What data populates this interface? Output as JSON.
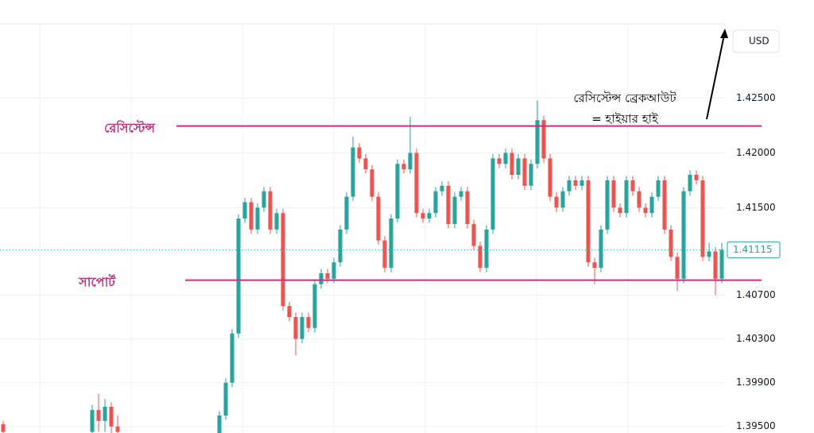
{
  "chart_data": {
    "type": "candlestick",
    "up_color": "#26a69a",
    "down_color": "#ef5350",
    "ylim": [
      1.3944,
      1.4318
    ],
    "yticks": [
      {
        "value": 1.425,
        "label": "1.42500"
      },
      {
        "value": 1.42,
        "label": "1.42000"
      },
      {
        "value": 1.415,
        "label": "1.41500"
      },
      {
        "value": 1.407,
        "label": "1.40700"
      },
      {
        "value": 1.403,
        "label": "1.40300"
      },
      {
        "value": 1.399,
        "label": "1.39900"
      },
      {
        "value": 1.395,
        "label": "1.39500"
      }
    ],
    "grid": true,
    "currency": "USD",
    "last_price": 1.41115,
    "resistance": {
      "label": "রেসিস্টেন্স",
      "value": 1.42246,
      "color": "#c2307f"
    },
    "support": {
      "label": "সাপোর্ট",
      "value": 1.40837,
      "color": "#c2307f"
    },
    "annotation": [
      "রেসিস্টেন্স ব্রেকআউট",
      "= হাইয়ার হাই"
    ],
    "open": [
      1.3952,
      null,
      null,
      null,
      null,
      null,
      null,
      null,
      null,
      null,
      null,
      null,
      null,
      null,
      1.3945,
      1.3965,
      1.3955,
      1.3968,
      1.395,
      null,
      null,
      null,
      null,
      null,
      null,
      null,
      null,
      null,
      null,
      null,
      null,
      null,
      null,
      null,
      1.393,
      1.396,
      1.399,
      1.4035,
      1.414,
      1.4155,
      1.413,
      1.415,
      1.4165,
      1.413,
      1.4145,
      1.406,
      1.405,
      1.403,
      1.405,
      1.404,
      1.408,
      1.409,
      1.4085,
      1.41,
      1.413,
      1.416,
      1.4205,
      1.4195,
      1.4185,
      1.416,
      1.412,
      1.4095,
      1.414,
      1.419,
      1.4185,
      1.42,
      1.4145,
      1.414,
      1.4145,
      1.4165,
      1.417,
      1.4135,
      1.416,
      1.4165,
      1.4135,
      1.4115,
      1.4095,
      1.413,
      1.4195,
      1.419,
      1.42,
      1.418,
      1.4195,
      1.417,
      1.419,
      1.423,
      1.4195,
      1.416,
      1.415,
      1.4165,
      1.4175,
      1.417,
      1.4175,
      1.41,
      1.4095,
      1.413,
      1.4175,
      1.415,
      1.4145,
      1.4175,
      1.4165,
      1.415,
      1.4145,
      1.416,
      1.4175,
      1.413,
      1.4105,
      1.4085,
      1.4165,
      1.418,
      1.4175,
      1.4105,
      1.411,
      1.4085
    ],
    "high": [
      1.3955,
      null,
      null,
      null,
      null,
      null,
      null,
      null,
      null,
      null,
      null,
      null,
      null,
      null,
      1.397,
      1.398,
      1.3975,
      1.3972,
      1.396,
      null,
      null,
      null,
      null,
      null,
      null,
      null,
      null,
      null,
      null,
      null,
      null,
      null,
      null,
      null,
      1.3964,
      1.3994,
      1.4039,
      1.4144,
      1.4159,
      1.4159,
      1.4154,
      1.4169,
      1.4169,
      1.4149,
      1.4149,
      1.4064,
      1.4054,
      1.4054,
      1.4054,
      1.4084,
      1.4094,
      1.4094,
      1.4104,
      1.4134,
      1.4164,
      1.4215,
      1.4209,
      1.4199,
      1.4189,
      1.4164,
      1.4124,
      1.4144,
      1.4194,
      1.4194,
      1.4233,
      1.4204,
      1.4149,
      1.4149,
      1.4169,
      1.4174,
      1.4174,
      1.4164,
      1.4169,
      1.4169,
      1.4139,
      1.4119,
      1.4134,
      1.4199,
      1.4199,
      1.4204,
      1.4204,
      1.4199,
      1.4199,
      1.4194,
      1.4248,
      1.4234,
      1.4199,
      1.4164,
      1.4169,
      1.4179,
      1.4179,
      1.4179,
      1.4179,
      1.4104,
      1.4134,
      1.4179,
      1.4179,
      1.4154,
      1.4179,
      1.4179,
      1.4169,
      1.4154,
      1.4164,
      1.4179,
      1.4179,
      1.4134,
      1.4109,
      1.4169,
      1.4184,
      1.4184,
      1.4179,
      1.4118,
      1.4114,
      1.4118
    ],
    "low": [
      1.394,
      null,
      null,
      null,
      null,
      null,
      null,
      null,
      null,
      null,
      null,
      null,
      null,
      null,
      1.394,
      1.3945,
      1.3945,
      1.394,
      1.3935,
      null,
      null,
      null,
      null,
      null,
      null,
      null,
      null,
      null,
      null,
      null,
      null,
      null,
      null,
      null,
      1.3926,
      1.3956,
      1.3986,
      1.4031,
      1.4136,
      1.4126,
      1.4126,
      1.4146,
      1.4126,
      1.4126,
      1.4056,
      1.4046,
      1.4015,
      1.4026,
      1.4036,
      1.4036,
      1.4076,
      1.4081,
      1.4081,
      1.4096,
      1.4126,
      1.4156,
      1.4191,
      1.4181,
      1.4156,
      1.4116,
      1.4091,
      1.4091,
      1.4136,
      1.4181,
      1.4181,
      1.4141,
      1.4136,
      1.4136,
      1.4141,
      1.4161,
      1.4131,
      1.4131,
      1.4156,
      1.4131,
      1.4111,
      1.4091,
      1.4091,
      1.4126,
      1.4186,
      1.4186,
      1.4176,
      1.4176,
      1.4166,
      1.4166,
      1.4186,
      1.4191,
      1.4156,
      1.4146,
      1.4146,
      1.4161,
      1.4166,
      1.4166,
      1.4096,
      1.408,
      1.4091,
      1.4126,
      1.4146,
      1.4141,
      1.4141,
      1.4161,
      1.4146,
      1.4141,
      1.4141,
      1.4156,
      1.4126,
      1.4101,
      1.4074,
      1.4081,
      1.4161,
      1.4171,
      1.4101,
      1.4101,
      1.407,
      1.4081
    ],
    "close": [
      1.3945,
      null,
      null,
      null,
      null,
      null,
      null,
      null,
      null,
      null,
      null,
      null,
      null,
      null,
      1.3965,
      1.3955,
      1.3968,
      1.395,
      1.3945,
      null,
      null,
      null,
      null,
      null,
      null,
      null,
      null,
      null,
      null,
      null,
      null,
      null,
      null,
      null,
      1.396,
      1.399,
      1.4035,
      1.414,
      1.4155,
      1.413,
      1.415,
      1.4165,
      1.413,
      1.4145,
      1.406,
      1.405,
      1.403,
      1.405,
      1.404,
      1.408,
      1.409,
      1.4085,
      1.41,
      1.413,
      1.416,
      1.4205,
      1.4195,
      1.4185,
      1.416,
      1.412,
      1.4095,
      1.414,
      1.419,
      1.4185,
      1.42,
      1.4145,
      1.414,
      1.4145,
      1.4165,
      1.417,
      1.4135,
      1.416,
      1.4165,
      1.4135,
      1.4115,
      1.4095,
      1.413,
      1.4195,
      1.419,
      1.42,
      1.418,
      1.4195,
      1.417,
      1.419,
      1.423,
      1.4195,
      1.416,
      1.415,
      1.4165,
      1.4175,
      1.417,
      1.4175,
      1.41,
      1.4095,
      1.413,
      1.4175,
      1.415,
      1.4145,
      1.4175,
      1.4165,
      1.415,
      1.4145,
      1.416,
      1.4175,
      1.413,
      1.4105,
      1.4085,
      1.4165,
      1.418,
      1.4175,
      1.4105,
      1.411,
      1.4085,
      1.41115
    ]
  }
}
